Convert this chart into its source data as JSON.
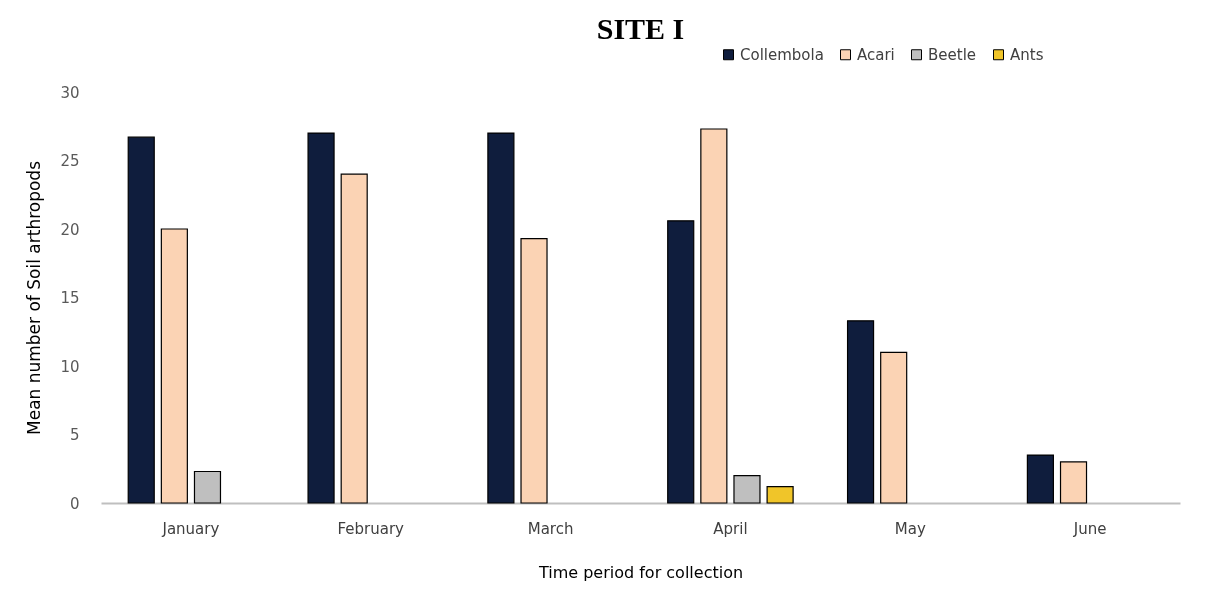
{
  "chart_data": {
    "type": "bar",
    "title": "SITE I",
    "xlabel": "Time period for collection",
    "ylabel": "Mean number of Soil arthropods",
    "categories": [
      "January",
      "February",
      "March",
      "April",
      "May",
      "June"
    ],
    "series": [
      {
        "name": "Collembola",
        "color": "#0f1d3d",
        "values": [
          26.7,
          27.0,
          27.0,
          20.6,
          13.3,
          3.5
        ]
      },
      {
        "name": "Acari",
        "color": "#fbd3b4",
        "values": [
          20.0,
          24.0,
          19.3,
          27.3,
          11.0,
          3.0
        ]
      },
      {
        "name": "Beetle",
        "color": "#bfbfbf",
        "values": [
          2.3,
          null,
          null,
          2.0,
          null,
          null
        ]
      },
      {
        "name": "Ants",
        "color": "#f0c529",
        "values": [
          null,
          null,
          null,
          1.2,
          null,
          null
        ]
      }
    ],
    "ylim": [
      0,
      30
    ],
    "yticks": [
      0,
      5,
      10,
      15,
      20,
      25,
      30
    ],
    "grid": false,
    "legend": "top right"
  }
}
